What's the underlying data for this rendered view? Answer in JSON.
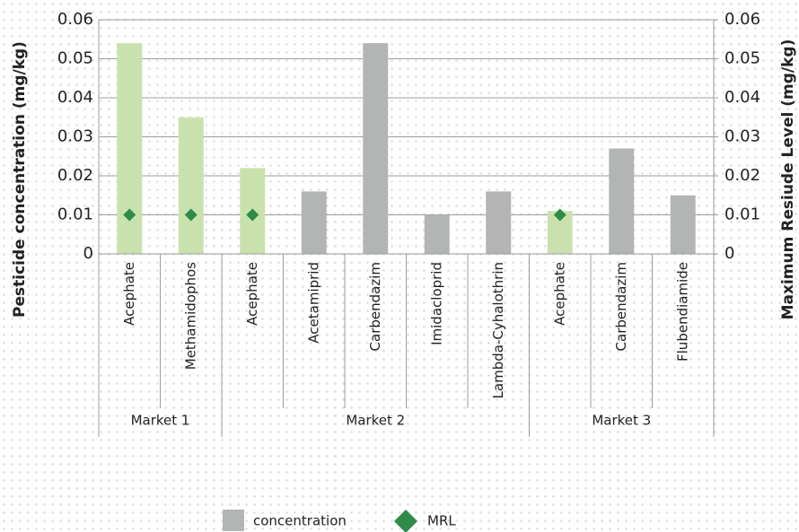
{
  "chart_data": {
    "type": "bar",
    "y_label": "Pesticide concentration (mg/kg)",
    "y2_label": "Maximum Resiude Level (mg/kg)",
    "categories": [
      "Acephate",
      "Methamidophos",
      "Acephate",
      "Acetamiprid",
      "Carbendazim",
      "Imidacloprid",
      "Lambda-Cyhalothrin",
      "Acephate",
      "Carbendazim",
      "Flubendiamide"
    ],
    "groups": [
      {
        "name": "Market 1",
        "span": [
          0,
          1
        ]
      },
      {
        "name": "Market 2",
        "span": [
          2,
          6
        ]
      },
      {
        "name": "Market 3",
        "span": [
          7,
          9
        ]
      }
    ],
    "series": [
      {
        "name": "concentration",
        "color": "#b3b5b5",
        "colors": [
          "#c9e2ad",
          "#c9e2ad",
          "#c9e2ad",
          "#b3b5b5",
          "#b3b5b5",
          "#b3b5b5",
          "#b3b5b5",
          "#c9e2ad",
          "#b3b5b5",
          "#b3b5b5"
        ],
        "values": [
          0.054,
          0.035,
          0.022,
          0.016,
          0.054,
          0.01,
          0.016,
          0.011,
          0.027,
          0.015
        ]
      },
      {
        "name": "MRL",
        "color": "#2e8b4a",
        "marker": "diamond",
        "values": [
          0.01,
          0.01,
          0.01,
          null,
          null,
          null,
          null,
          0.01,
          null,
          null
        ]
      }
    ],
    "ylim": [
      0,
      0.06
    ],
    "yticks": [
      0,
      0.01,
      0.02,
      0.03,
      0.04,
      0.05,
      0.06
    ],
    "y2lim": [
      0,
      0.06
    ],
    "y2ticks": [
      0,
      0.01,
      0.02,
      0.03,
      0.04,
      0.05,
      0.06
    ],
    "grid": true,
    "legend": "bottom"
  }
}
